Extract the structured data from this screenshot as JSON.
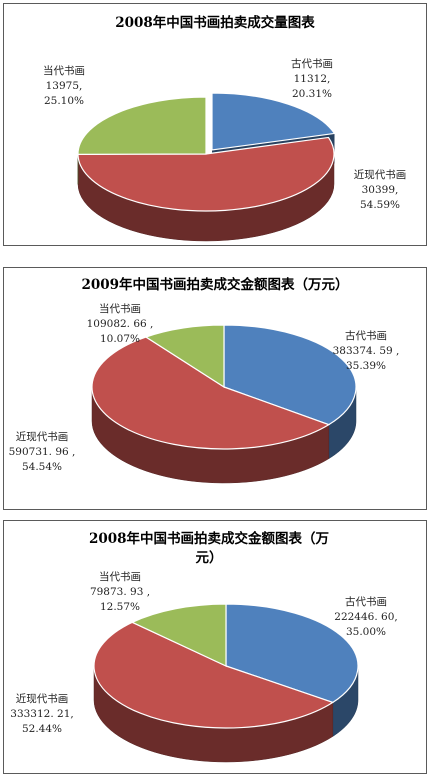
{
  "chart_data": [
    {
      "type": "pie",
      "title": "2008年中国书画拍卖成交量图表",
      "categories": [
        "古代书画",
        "近现代书画",
        "当代书画"
      ],
      "values": [
        11312,
        30399,
        13975
      ],
      "value_labels": [
        "11312,",
        "30399,",
        "13975,"
      ],
      "percent_labels": [
        "20.31%",
        "54.59%",
        "25.10%"
      ],
      "colors": [
        "#4f81bd",
        "#c0504d",
        "#9bbb59"
      ],
      "legend": "none"
    },
    {
      "type": "pie",
      "title": "2009年中国书画拍卖成交金额图表（万元）",
      "categories": [
        "古代书画",
        "近现代书画",
        "当代书画"
      ],
      "values": [
        383374.59,
        590731.96,
        109082.66
      ],
      "value_labels": [
        "383374. 59 ,",
        "590731. 96 ,",
        "109082. 66 ,"
      ],
      "percent_labels": [
        "35.39%",
        "54.54%",
        "10.07%"
      ],
      "colors": [
        "#4f81bd",
        "#c0504d",
        "#9bbb59"
      ],
      "legend": "none"
    },
    {
      "type": "pie",
      "title": "2008年中国书画拍卖成交金额图表（万",
      "title_line2": "元）",
      "categories": [
        "古代书画",
        "近现代书画",
        "当代书画"
      ],
      "values": [
        222446.6,
        333312.21,
        79873.93
      ],
      "value_labels": [
        "222446. 60,",
        "333312. 21,",
        "79873. 93 ,"
      ],
      "percent_labels": [
        "35.00%",
        "52.44%",
        "12.57%"
      ],
      "colors": [
        "#4f81bd",
        "#c0504d",
        "#9bbb59"
      ],
      "legend": "none"
    }
  ]
}
